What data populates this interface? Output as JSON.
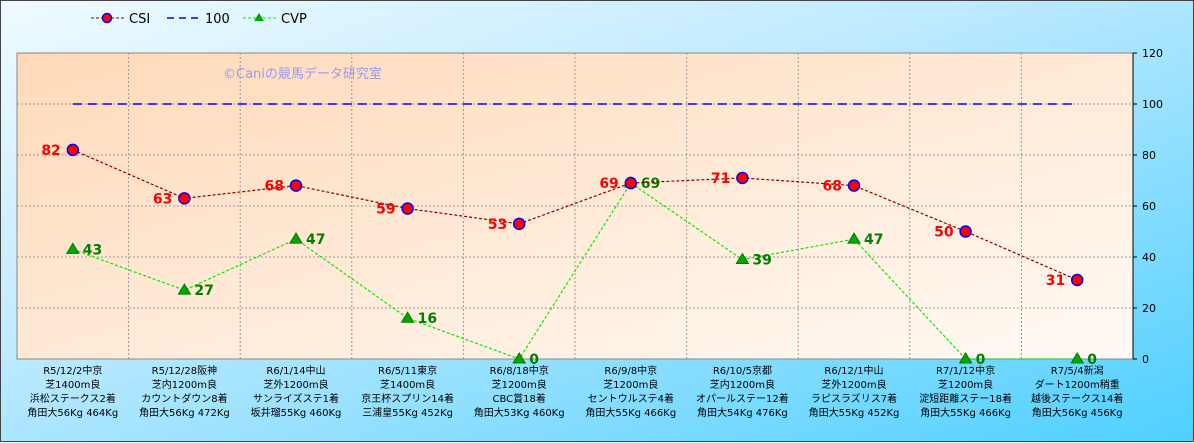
{
  "chart_data": {
    "type": "line",
    "watermark": "©Caniの競馬データ研究室",
    "legend": [
      "CSI",
      "100",
      "CVP"
    ],
    "legend_position": "top-left",
    "ylim": [
      0,
      120
    ],
    "yticks": [
      "0",
      "20",
      "40",
      "60",
      "80",
      "100",
      "120"
    ],
    "categories": [
      [
        "R5/12/2中京",
        "芝1400m良",
        "浜松ステークス2着",
        "角田大56Kg 464Kg"
      ],
      [
        "R5/12/28阪神",
        "芝内1200m良",
        "カウントダウン8着",
        "角田大56Kg 472Kg"
      ],
      [
        "R6/1/14中山",
        "芝外1200m良",
        "サンライズステ1着",
        "坂井瑠55Kg 460Kg"
      ],
      [
        "R6/5/11東京",
        "芝1400m良",
        "京王杯スプリン14着",
        "三浦皇55Kg 452Kg"
      ],
      [
        "R6/8/18中京",
        "芝1200m良",
        "CBC賞18着",
        "角田大53Kg 460Kg"
      ],
      [
        "R6/9/8中京",
        "芝1200m良",
        "セントウルステ4着",
        "角田大55Kg 466Kg"
      ],
      [
        "R6/10/5京都",
        "芝内1200m良",
        "オパールステー12着",
        "角田大54Kg 476Kg"
      ],
      [
        "R6/12/1中山",
        "芝外1200m良",
        "ラピスラズリス7着",
        "角田大55Kg 452Kg"
      ],
      [
        "R7/1/12中京",
        "芝1200m良",
        "淀短距離ステー18着",
        "角田大55Kg 466Kg"
      ],
      [
        "R7/5/4新潟",
        "ダート1200m稍重",
        "越後ステークス14着",
        "角田大56Kg 456Kg"
      ]
    ],
    "series": [
      {
        "name": "CSI",
        "values": [
          82,
          63,
          68,
          59,
          53,
          69,
          71,
          68,
          50,
          31
        ],
        "color": "#8b0000",
        "marker": "#ff0000",
        "label_color": "#ff0000"
      },
      {
        "name": "100",
        "values": [
          100,
          100,
          100,
          100,
          100,
          100,
          100,
          100,
          100,
          100
        ],
        "color": "#0000ff"
      },
      {
        "name": "CVP",
        "values": [
          43,
          27,
          47,
          16,
          0,
          69,
          39,
          47,
          0,
          0
        ],
        "color": "#00ee00",
        "marker": "#00aa00",
        "label_color": "#008000"
      }
    ]
  }
}
